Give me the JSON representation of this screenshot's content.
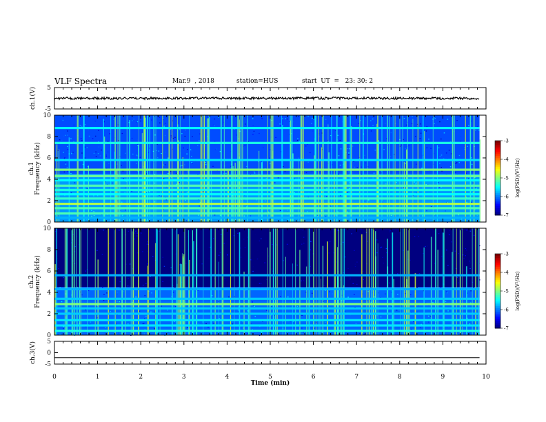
{
  "header": {
    "title": "VLF Spectra",
    "date": "Mar.9  , 2018",
    "station": "station=HUS",
    "start_ut": "start  UT  =   23: 30: 2"
  },
  "chart_data": [
    {
      "type": "line",
      "panel": "ch1-waveform",
      "ylabel": "ch.1(V)",
      "yticks": [
        "5",
        "-5"
      ],
      "ylim": [
        -5,
        5
      ],
      "xlim": [
        0,
        10
      ],
      "x": [
        0,
        9.85
      ],
      "series": [
        {
          "values": [
            0,
            0
          ]
        }
      ],
      "color": "#000000"
    },
    {
      "type": "heatmap",
      "panel": "ch1-spectrogram",
      "ylabel": "ch.1\nFrequency (kHz)",
      "yticks": [
        "0",
        "2",
        "4",
        "6",
        "8",
        "10"
      ],
      "ylim": [
        0,
        10
      ],
      "xlim": [
        0,
        10
      ],
      "data_x_range": [
        0,
        9.85
      ],
      "colorbar": {
        "label": "log(PSD)(V²/Hz)",
        "ticks": [
          "-3",
          "-4",
          "-5",
          "-6",
          "-7"
        ],
        "range": [
          -7,
          -3
        ]
      },
      "noise_floor_above_4_5kHz": -6.2,
      "noise_floor_below_4_5kHz": -5.9,
      "bands_khz": [
        {
          "f": 0.4,
          "level": -5.8
        },
        {
          "f": 0.8,
          "level": -5.2
        },
        {
          "f": 1.3,
          "level": -5.2
        },
        {
          "f": 1.7,
          "level": -4.8
        },
        {
          "f": 2.2,
          "level": -5.3
        },
        {
          "f": 2.6,
          "level": -5.5
        },
        {
          "f": 3.0,
          "level": -5.4
        },
        {
          "f": 3.4,
          "level": -5.2
        },
        {
          "f": 3.9,
          "level": -5.5
        },
        {
          "f": 4.3,
          "level": -5.1
        },
        {
          "f": 4.9,
          "level": -5.0
        },
        {
          "f": 5.8,
          "level": -5.6
        },
        {
          "f": 7.4,
          "level": -5.4
        },
        {
          "f": 8.8,
          "level": -5.5
        }
      ]
    },
    {
      "type": "heatmap",
      "panel": "ch2-spectrogram",
      "ylabel": "ch.2\nFrequency (kHz)",
      "yticks": [
        "0",
        "2",
        "4",
        "6",
        "8",
        "10"
      ],
      "ylim": [
        0,
        10
      ],
      "xlim": [
        0,
        10
      ],
      "data_x_range": [
        0,
        9.85
      ],
      "colorbar": {
        "label": "log(PSD)(V²/Hz)",
        "ticks": [
          "-3",
          "-4",
          "-5",
          "-6",
          "-7"
        ],
        "range": [
          -7,
          -3
        ]
      },
      "noise_floor_above_4_5kHz": -7.0,
      "noise_floor_below_4_5kHz": -6.1,
      "bands_khz": [
        {
          "f": 0.4,
          "level": -5.4
        },
        {
          "f": 0.9,
          "level": -5.6
        },
        {
          "f": 1.4,
          "level": -5.6
        },
        {
          "f": 2.0,
          "level": -5.7
        },
        {
          "f": 2.5,
          "level": -5.7
        },
        {
          "f": 2.9,
          "level": -5.0
        },
        {
          "f": 3.4,
          "level": -5.7
        },
        {
          "f": 4.3,
          "level": -5.8
        },
        {
          "f": 5.6,
          "level": -5.8
        }
      ]
    },
    {
      "type": "line",
      "panel": "ch3-waveform",
      "ylabel": "ch.3(V)",
      "yticks": [
        "5",
        "0",
        "-5"
      ],
      "ylim": [
        -5,
        5
      ],
      "xlim": [
        0,
        10
      ],
      "x": [
        0,
        9.85
      ],
      "series": [
        {
          "values": [
            -2.2,
            -2.2
          ]
        }
      ],
      "color": "#000000",
      "xlabel": "Time  (min)",
      "xticks": [
        "0",
        "1",
        "2",
        "3",
        "4",
        "5",
        "6",
        "7",
        "8",
        "9",
        "10"
      ]
    }
  ]
}
